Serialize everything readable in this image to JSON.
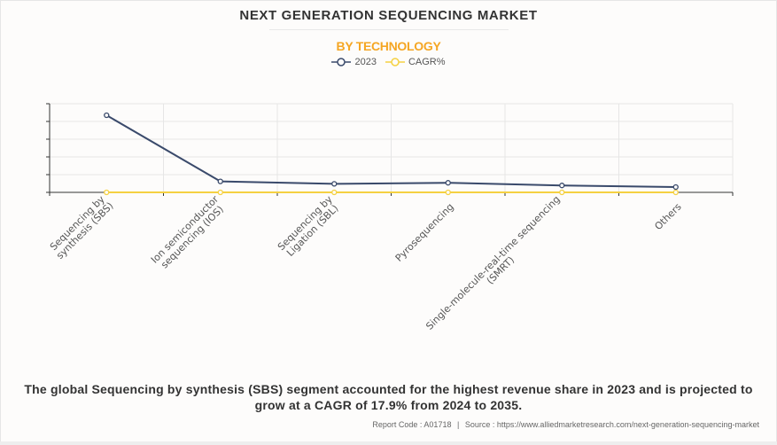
{
  "header": {
    "title": "NEXT GENERATION SEQUENCING MARKET",
    "subtitle": "BY TECHNOLOGY"
  },
  "legend": [
    {
      "label": "2023",
      "color": "#3a4a6b",
      "icon": "circle-line-marker"
    },
    {
      "label": "CAGR%",
      "color": "#f5d142",
      "icon": "circle-line-marker"
    }
  ],
  "chart_data": {
    "type": "line",
    "title": "NEXT GENERATION SEQUENCING MARKET",
    "subtitle": "BY TECHNOLOGY",
    "xlabel": "",
    "ylabel": "",
    "y_tick_labels_shown": false,
    "y_scale_note": "No y-axis labels shown; values estimated in gridline units (0-5)",
    "ylim": [
      0,
      5
    ],
    "grid": true,
    "legend_position": "top-center",
    "categories": [
      "Sequencing by synthesis (SBS)",
      "Ion semiconductor sequencing (IOS)",
      "Sequencing by Ligation (SBL)",
      "Pyrosequencing",
      "Single-molecule-real-time sequencing (SMRT)",
      "Others"
    ],
    "category_label_lines": [
      [
        "Sequencing by",
        "synthesis (SBS)"
      ],
      [
        "Ion semiconductor",
        "sequencing (IOS)"
      ],
      [
        "Sequencing by",
        "Ligation (SBL)"
      ],
      [
        "Pyrosequencing"
      ],
      [
        "Single-molecule-real-time sequencing",
        "(SMRT)"
      ],
      [
        "Others"
      ]
    ],
    "series": [
      {
        "name": "2023",
        "color": "#3a4a6b",
        "values": [
          4.35,
          0.62,
          0.48,
          0.54,
          0.39,
          0.3
        ]
      },
      {
        "name": "CAGR%",
        "color": "#f5d142",
        "values": [
          0.0,
          0.0,
          0.0,
          0.0,
          0.0,
          0.0
        ]
      }
    ]
  },
  "summary": "The global Sequencing by synthesis (SBS) segment accounted for the highest revenue share in 2023 and is projected to grow at a CAGR of 17.9% from 2024 to 2035.",
  "footer": {
    "report_code": "Report Code : A01718",
    "separator": "|",
    "source": "Source : https://www.alliedmarketresearch.com/next-generation-sequencing-market"
  }
}
